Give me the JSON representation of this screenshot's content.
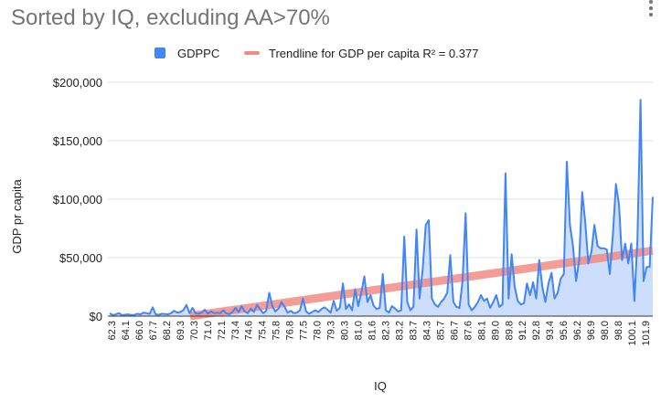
{
  "title": "Sorted by IQ, excluding AA>70%",
  "colors": {
    "series": "#4285f4",
    "area": "#c6dafc",
    "trend": "#f28b82"
  },
  "chart_data": {
    "type": "area",
    "title": "Sorted by IQ, excluding AA>70%",
    "xlabel": "IQ",
    "ylabel": "GDP pr capita",
    "ylim": [
      0,
      200000
    ],
    "y_ticks": [
      "$0",
      "$50,000",
      "$100,000",
      "$150,000",
      "$200,000"
    ],
    "y_tick_values": [
      0,
      50000,
      100000,
      150000,
      200000
    ],
    "x_tick_labels": [
      "62.3",
      "64.1",
      "66.0",
      "67.7",
      "68.2",
      "69.3",
      "70.3",
      "71.0",
      "72.1",
      "73.4",
      "74.6",
      "75.4",
      "75.8",
      "76.8",
      "77.5",
      "78.0",
      "79.3",
      "80.3",
      "81.0",
      "81.6",
      "82.3",
      "83.2",
      "83.7",
      "84.3",
      "85.7",
      "86.7",
      "87.6",
      "88.1",
      "89.0",
      "89.8",
      "91.2",
      "92.8",
      "93.4",
      "95.6",
      "96.2",
      "96.9",
      "98.0",
      "98.8",
      "100.1",
      "101.9"
    ],
    "legend": {
      "position": "top",
      "items": [
        {
          "label": "GDPPC",
          "kind": "area"
        },
        {
          "label": "Trendline for GDP per capita R² = 0.377",
          "kind": "line"
        }
      ]
    },
    "series": [
      {
        "name": "GDPPC",
        "values": [
          2500,
          800,
          1500,
          2500,
          800,
          1200,
          1500,
          1000,
          900,
          2000,
          1500,
          3000,
          2500,
          1800,
          7500,
          1500,
          1200,
          2000,
          1800,
          1500,
          2500,
          4500,
          3000,
          3500,
          5000,
          9500,
          2500,
          7000,
          2500,
          2000,
          3000,
          5500,
          2000,
          4000,
          2500,
          3000,
          2500,
          5000,
          2500,
          1500,
          3500,
          7000,
          3500,
          8500,
          4000,
          2500,
          6500,
          3500,
          9500,
          6000,
          2500,
          4500,
          20000,
          8500,
          4000,
          6500,
          12000,
          8000,
          3000,
          4500,
          2500,
          3000,
          5000,
          15000,
          4000,
          2000,
          3500,
          5000,
          3500,
          6000,
          7500,
          5500,
          3000,
          13000,
          4500,
          7000,
          28000,
          6000,
          10000,
          5000,
          23000,
          8500,
          20000,
          34000,
          12000,
          18000,
          9000,
          6000,
          7000,
          36000,
          5000,
          3000,
          8500,
          6500,
          4000,
          5000,
          68000,
          12000,
          5000,
          8000,
          74000,
          15000,
          40000,
          78000,
          82000,
          15000,
          10000,
          8000,
          12000,
          15000,
          20000,
          52000,
          12000,
          8000,
          7000,
          30000,
          88000,
          10000,
          5000,
          8000,
          12000,
          18000,
          13000,
          15000,
          7000,
          12000,
          18000,
          8000,
          10000,
          122000,
          15000,
          53000,
          25000,
          13000,
          10000,
          11000,
          28000,
          18000,
          29000,
          15000,
          48000,
          25000,
          12000,
          28000,
          37000,
          15000,
          20000,
          32000,
          36000,
          132000,
          78000,
          60000,
          30000,
          48000,
          106000,
          80000,
          45000,
          55000,
          78000,
          60000,
          58000,
          58000,
          57000,
          36000,
          70000,
          113000,
          95000,
          48000,
          62000,
          45000,
          62000,
          13000,
          65000,
          185000,
          30000,
          42000,
          42000,
          102000
        ],
        "trend_approx": {
          "y_start": 0,
          "y_end": 56000,
          "r_squared": 0.377
        }
      }
    ]
  }
}
